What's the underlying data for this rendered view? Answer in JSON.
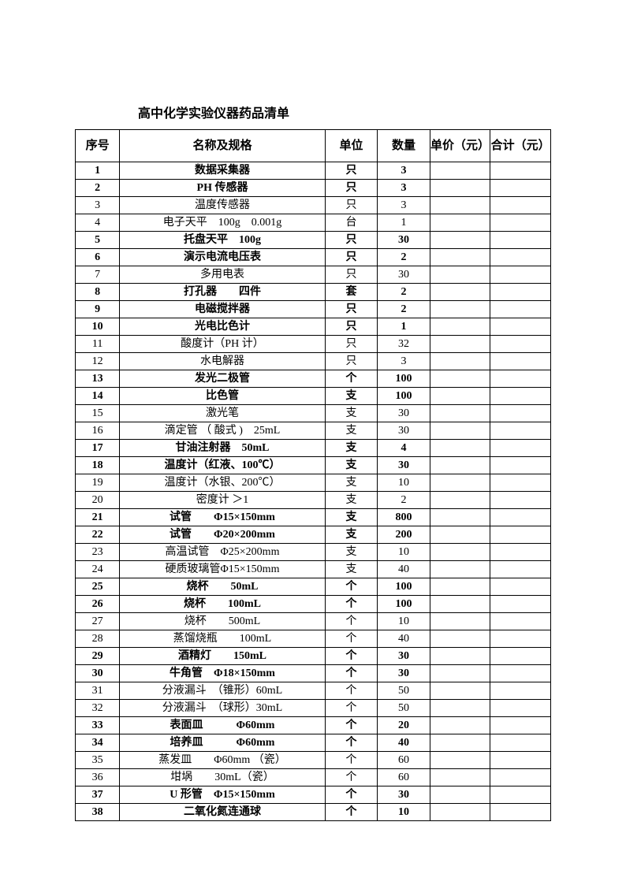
{
  "title": "高中化学实验仪器药品清单",
  "columns": [
    "序号",
    "名称及规格",
    "单位",
    "数量",
    "单价（元）",
    "合计（元）"
  ],
  "rows": [
    {
      "n": "1",
      "name": "数据采集器",
      "unit": "只",
      "qty": "3",
      "bold": true
    },
    {
      "n": "2",
      "name": "PH 传感器",
      "unit": "只",
      "qty": "3",
      "bold": true
    },
    {
      "n": "3",
      "name": "温度传感器",
      "unit": "只",
      "qty": "3",
      "bold": false
    },
    {
      "n": "4",
      "name": "电子天平　100g　0.001g",
      "unit": "台",
      "qty": "1",
      "bold": false
    },
    {
      "n": "5",
      "name": "托盘天平　100g",
      "unit": "只",
      "qty": "30",
      "bold": true
    },
    {
      "n": "6",
      "name": "演示电流电压表",
      "unit": "只",
      "qty": "2",
      "bold": true
    },
    {
      "n": "7",
      "name": "多用电表",
      "unit": "只",
      "qty": "30",
      "bold": false
    },
    {
      "n": "8",
      "name": "打孔器　　四件",
      "unit": "套",
      "qty": "2",
      "bold": true
    },
    {
      "n": "9",
      "name": "电磁搅拌器",
      "unit": "只",
      "qty": "2",
      "bold": true
    },
    {
      "n": "10",
      "name": "光电比色计",
      "unit": "只",
      "qty": "1",
      "bold": true
    },
    {
      "n": "11",
      "name": "酸度计（PH 计）",
      "unit": "只",
      "qty": "32",
      "bold": false
    },
    {
      "n": "12",
      "name": "水电解器",
      "unit": "只",
      "qty": "3",
      "bold": false
    },
    {
      "n": "13",
      "name": "发光二极管",
      "unit": "个",
      "qty": "100",
      "bold": true
    },
    {
      "n": "14",
      "name": "比色管",
      "unit": "支",
      "qty": "100",
      "bold": true
    },
    {
      "n": "15",
      "name": "激光笔",
      "unit": "支",
      "qty": "30",
      "bold": false
    },
    {
      "n": "16",
      "name": "滴定管 （ 酸式 )　25mL",
      "unit": "支",
      "qty": "30",
      "bold": false
    },
    {
      "n": "17",
      "name": "甘油注射器　50mL",
      "unit": "支",
      "qty": "4",
      "bold": true
    },
    {
      "n": "18",
      "name": "温度计（红液、100℃）",
      "unit": "支",
      "qty": "30",
      "bold": true
    },
    {
      "n": "19",
      "name": "温度计（水银、200℃）",
      "unit": "支",
      "qty": "10",
      "bold": false
    },
    {
      "n": "20",
      "name": "密度计 ＞1",
      "unit": "支",
      "qty": "2",
      "bold": false
    },
    {
      "n": "21",
      "name": "试管　　Φ15×150mm",
      "unit": "支",
      "qty": "800",
      "bold": true
    },
    {
      "n": "22",
      "name": "试管　　Φ20×200mm",
      "unit": "支",
      "qty": "200",
      "bold": true
    },
    {
      "n": "23",
      "name": "高温试管　Φ25×200mm",
      "unit": "支",
      "qty": "10",
      "bold": false
    },
    {
      "n": "24",
      "name": "硬质玻璃管Φ15×150mm",
      "unit": "支",
      "qty": "40",
      "bold": false
    },
    {
      "n": "25",
      "name": "烧杯　　50mL",
      "unit": "个",
      "qty": "100",
      "bold": true
    },
    {
      "n": "26",
      "name": "烧杯　　100mL",
      "unit": "个",
      "qty": "100",
      "bold": true
    },
    {
      "n": "27",
      "name": "烧杯　　500mL",
      "unit": "个",
      "qty": "10",
      "bold": false
    },
    {
      "n": "28",
      "name": "蒸馏烧瓶　　100mL",
      "unit": "个",
      "qty": "40",
      "bold": false
    },
    {
      "n": "29",
      "name": "酒精灯　　150mL",
      "unit": "个",
      "qty": "30",
      "bold": true
    },
    {
      "n": "30",
      "name": "牛角管　Φ18×150mm",
      "unit": "个",
      "qty": "30",
      "bold": true
    },
    {
      "n": "31",
      "name": "分液漏斗　（锥形）60mL",
      "unit": "个",
      "qty": "50",
      "bold": false
    },
    {
      "n": "32",
      "name": "分液漏斗　（球形）30mL",
      "unit": "个",
      "qty": "50",
      "bold": false
    },
    {
      "n": "33",
      "name": "表面皿　　　Φ60mm",
      "unit": "个",
      "qty": "20",
      "bold": true
    },
    {
      "n": "34",
      "name": "培养皿　　　Φ60mm",
      "unit": "个",
      "qty": "40",
      "bold": true
    },
    {
      "n": "35",
      "name": "蒸发皿　　Φ60mm （瓷）",
      "unit": "个",
      "qty": "60",
      "bold": false
    },
    {
      "n": "36",
      "name": "坩埚　　30mL（瓷）",
      "unit": "个",
      "qty": "60",
      "bold": false
    },
    {
      "n": "37",
      "name": "U 形管　Φ15×150mm",
      "unit": "个",
      "qty": "30",
      "bold": true
    },
    {
      "n": "38",
      "name": "二氧化氮连通球",
      "unit": "个",
      "qty": "10",
      "bold": true
    }
  ]
}
